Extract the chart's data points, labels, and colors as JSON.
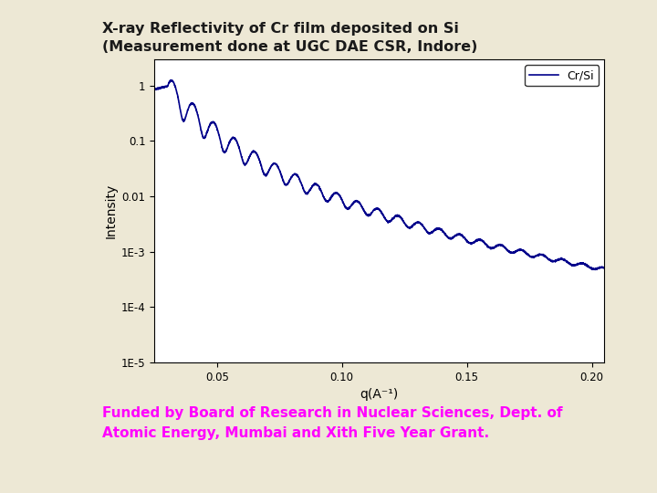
{
  "title_line1": "X-ray Reflectivity of Cr film deposited on Si",
  "title_line2": "(Measurement done at UGC DAE CSR, Indore)",
  "title_color": "#1a1a1a",
  "title_fontsize": 11.5,
  "xlabel": "q(A⁻¹)",
  "ylabel": "Intensity",
  "legend_label": "Cr/Si",
  "line_color": "#00008B",
  "line_width": 1.2,
  "bg_color": "#EDE8D5",
  "plot_bg_color": "#FFFFFF",
  "funding_text_line1": "Funded by Board of Research in Nuclear Sciences, Dept. of",
  "funding_text_line2": "Atomic Energy, Mumbai and Xith Five Year Grant.",
  "funding_color": "#FF00FF",
  "funding_fontsize": 11,
  "xmin": 0.025,
  "xmax": 0.205,
  "ymin": 1e-05,
  "ymax": 3.0,
  "xticks": [
    0.05,
    0.1,
    0.15,
    0.2
  ],
  "ytick_vals": [
    1e-05,
    0.0001,
    0.001,
    0.01,
    0.1,
    1
  ],
  "ytick_labels": [
    "1E-5",
    "1E-4",
    "1E-3",
    "0.01",
    "0.1",
    "1"
  ]
}
